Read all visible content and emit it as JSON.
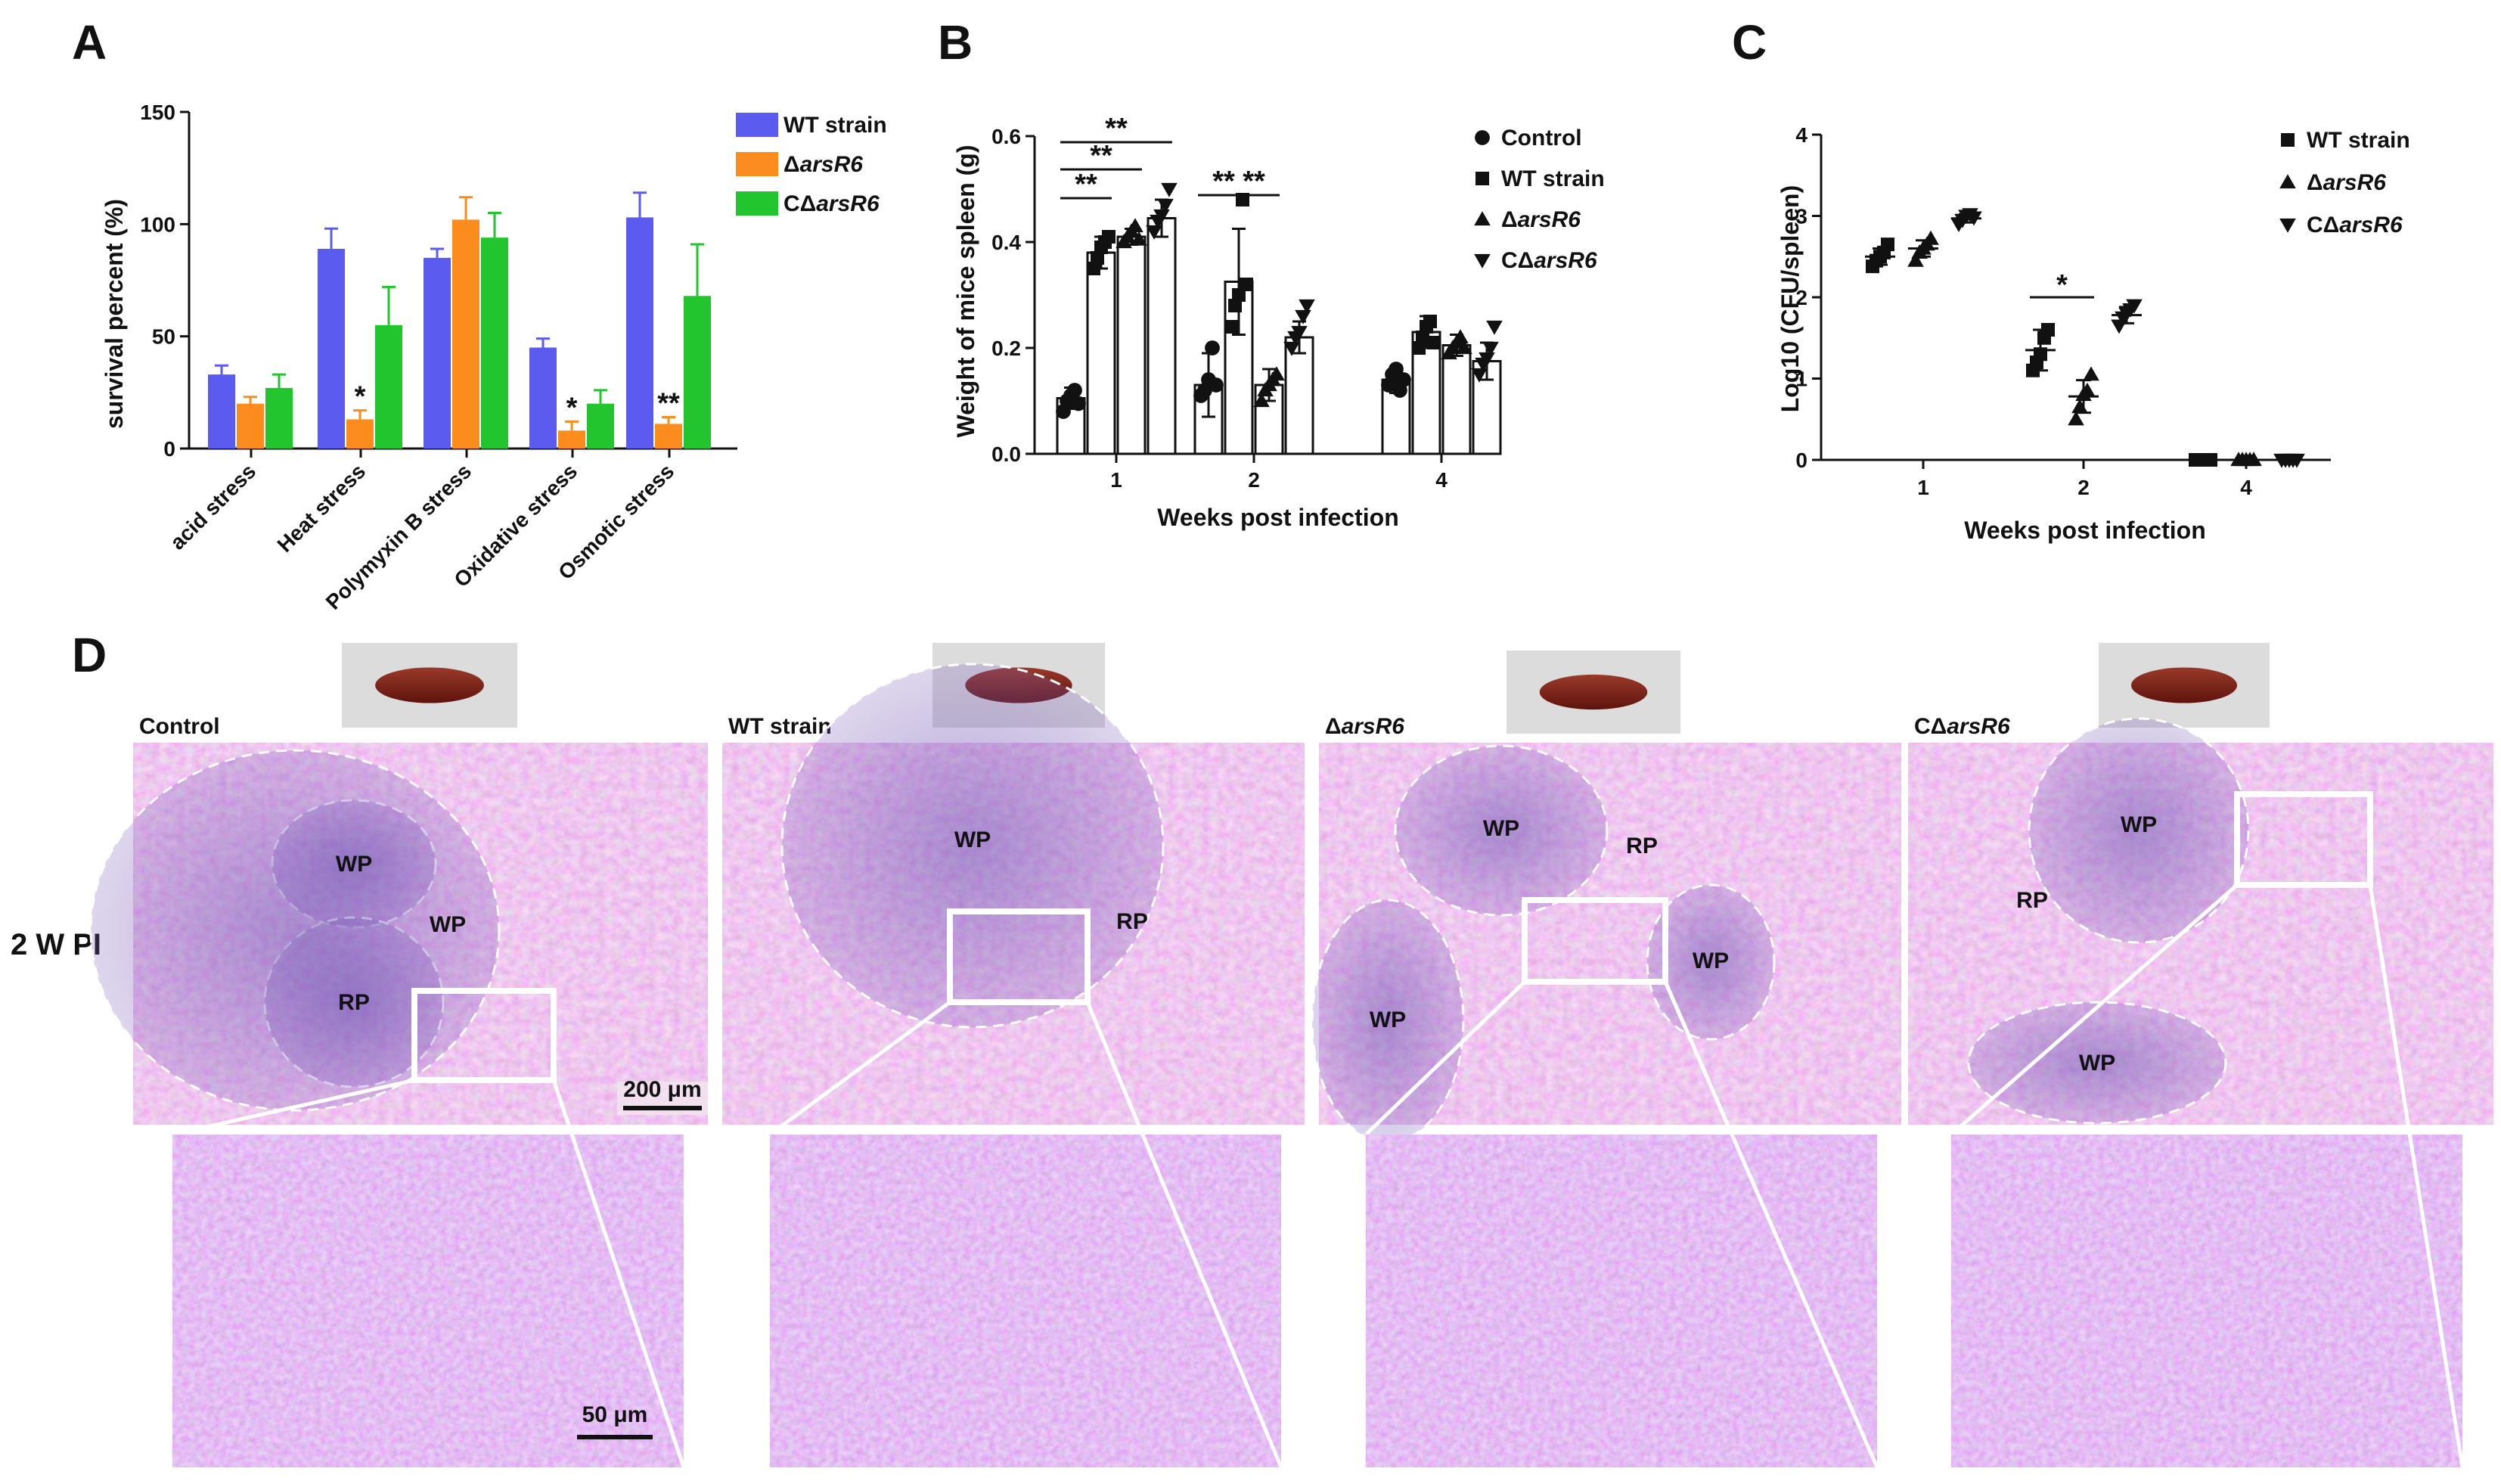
{
  "panels": {
    "a": "A",
    "b": "B",
    "c": "C",
    "d": "D"
  },
  "colors": {
    "wt": "#5b5bf0",
    "del": "#fb8c1d",
    "comp": "#22c52e",
    "axis": "#111111",
    "tissue_pink": "#dc7fc1",
    "tissue_purple": "#8b67c0",
    "spleen": "#7a1e14"
  },
  "chart_data": [
    {
      "id": "A",
      "type": "bar",
      "ylabel": "survival percent (%)",
      "ylim": [
        0,
        150
      ],
      "yticks": [
        "0",
        "50",
        "100",
        "150"
      ],
      "categories": [
        "acid stress",
        "Heat stress",
        "Polymyxin B stress",
        "Oxidative stress",
        "Osmotic stress"
      ],
      "series": [
        {
          "name": "WT strain",
          "color": "#5b5bf0",
          "values": [
            33,
            89,
            85,
            45,
            103
          ],
          "errors": [
            4,
            9,
            4,
            4,
            11
          ]
        },
        {
          "name": "ΔarsR6",
          "color": "#fb8c1d",
          "values": [
            20,
            13,
            102,
            8,
            11
          ],
          "errors": [
            3,
            4,
            10,
            4,
            3
          ]
        },
        {
          "name": "CΔarsR6",
          "color": "#22c52e",
          "values": [
            27,
            55,
            94,
            20,
            68
          ],
          "errors": [
            6,
            17,
            11,
            6,
            23
          ]
        }
      ],
      "significance": [
        {
          "category": 1,
          "series": 1,
          "label": "*"
        },
        {
          "category": 3,
          "series": 1,
          "label": "*"
        },
        {
          "category": 4,
          "series": 1,
          "label": "**"
        }
      ]
    },
    {
      "id": "B",
      "type": "bar",
      "ylabel": "Weight of mice spleen (g)",
      "xlabel": "Weeks post infection",
      "ylim": [
        0,
        0.6
      ],
      "yticks": [
        "0.0",
        "0.2",
        "0.4",
        "0.6"
      ],
      "categories": [
        "1",
        "2",
        "4"
      ],
      "series": [
        {
          "name": "Control",
          "marker": "circle",
          "values": [
            0.105,
            0.13,
            0.14
          ],
          "errors": [
            0.02,
            0.06,
            0.025
          ],
          "points": [
            [
              0.08,
              0.1,
              0.11,
              0.12,
              0.095
            ],
            [
              0.11,
              0.12,
              0.14,
              0.2,
              0.13
            ],
            [
              0.13,
              0.15,
              0.16,
              0.12,
              0.14
            ]
          ]
        },
        {
          "name": "WT strain",
          "marker": "square",
          "values": [
            0.38,
            0.325,
            0.23
          ],
          "errors": [
            0.03,
            0.1,
            0.03
          ],
          "points": [
            [
              0.35,
              0.37,
              0.39,
              0.4,
              0.41
            ],
            [
              0.24,
              0.28,
              0.3,
              0.48,
              0.32
            ],
            [
              0.2,
              0.22,
              0.24,
              0.25,
              0.21
            ]
          ]
        },
        {
          "name": "ΔarsR6",
          "marker": "triangle-up",
          "values": [
            0.41,
            0.13,
            0.205
          ],
          "errors": [
            0.015,
            0.03,
            0.02
          ],
          "points": [
            [
              0.4,
              0.41,
              0.42,
              0.43,
              0.405
            ],
            [
              0.1,
              0.12,
              0.13,
              0.14,
              0.15
            ],
            [
              0.19,
              0.2,
              0.21,
              0.22,
              0.2
            ]
          ]
        },
        {
          "name": "CΔarsR6",
          "marker": "triangle-down",
          "values": [
            0.445,
            0.22,
            0.175
          ],
          "errors": [
            0.035,
            0.03,
            0.035
          ],
          "points": [
            [
              0.42,
              0.44,
              0.45,
              0.47,
              0.5
            ],
            [
              0.2,
              0.22,
              0.23,
              0.26,
              0.28
            ],
            [
              0.15,
              0.17,
              0.18,
              0.2,
              0.24
            ]
          ]
        }
      ],
      "significance": [
        {
          "from": 0,
          "to": 1,
          "category": 0,
          "label": "**"
        },
        {
          "from": 0,
          "to": 2,
          "category": 0,
          "label": "**"
        },
        {
          "from": 0,
          "to": 3,
          "category": 0,
          "label": "**"
        },
        {
          "from": 0,
          "to": 1,
          "category": 1,
          "label": "**"
        },
        {
          "from": 1,
          "to": 2,
          "category": 1,
          "label": "**"
        }
      ],
      "legend": [
        "Control",
        "WT strain",
        "ΔarsR6",
        "CΔarsR6"
      ]
    },
    {
      "id": "C",
      "type": "scatter",
      "ylabel": "Log10 (CFU/spleen)",
      "xlabel": "Weeks post infection",
      "ylim": [
        0,
        4
      ],
      "yticks": [
        "0",
        "1",
        "2",
        "3",
        "4"
      ],
      "categories": [
        "1",
        "2",
        "4"
      ],
      "series": [
        {
          "name": "WT strain",
          "marker": "square",
          "mean": [
            2.5,
            1.35,
            0
          ],
          "sd": [
            0.1,
            0.25,
            0
          ],
          "points": [
            [
              2.38,
              2.45,
              2.5,
              2.55,
              2.65
            ],
            [
              1.1,
              1.2,
              1.3,
              1.5,
              1.6
            ],
            [
              0,
              0,
              0,
              0,
              0
            ]
          ]
        },
        {
          "name": "ΔarsR6",
          "marker": "triangle-up",
          "mean": [
            2.6,
            0.78,
            0
          ],
          "sd": [
            0.1,
            0.2,
            0
          ],
          "points": [
            [
              2.45,
              2.55,
              2.6,
              2.65,
              2.72
            ],
            [
              0.5,
              0.65,
              0.8,
              0.85,
              1.05
            ],
            [
              0,
              0,
              0,
              0,
              0
            ]
          ]
        },
        {
          "name": "CΔarsR6",
          "marker": "triangle-down",
          "mean": [
            2.97,
            1.78,
            0
          ],
          "sd": [
            0.05,
            0.1,
            0
          ],
          "points": [
            [
              2.9,
              2.95,
              3.0,
              3.02,
              2.98
            ],
            [
              1.65,
              1.75,
              1.8,
              1.85,
              1.9
            ],
            [
              0,
              0,
              0,
              0,
              0
            ]
          ]
        }
      ],
      "significance": [
        {
          "category": 1,
          "from": 0,
          "to": 1,
          "label": "*"
        }
      ]
    }
  ],
  "panel_d": {
    "row_label": "2 W PI",
    "columns": [
      {
        "title": "Control",
        "regions": [
          "WP",
          "RP",
          "WP"
        ],
        "scale_top": "200 μm",
        "scale_bottom": "50 μm"
      },
      {
        "title": "WT strain",
        "regions": [
          "WP",
          "RP"
        ]
      },
      {
        "title": "ΔarsR6",
        "regions": [
          "WP",
          "RP",
          "WP",
          "WP"
        ]
      },
      {
        "title": "CΔarsR6",
        "regions": [
          "WP",
          "RP",
          "WP"
        ]
      }
    ]
  }
}
